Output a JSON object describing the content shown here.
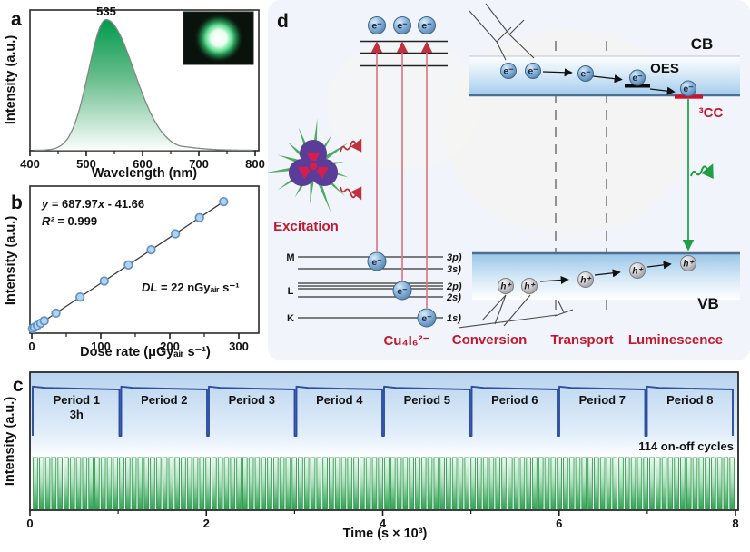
{
  "panels": {
    "a": {
      "panel_label": "a",
      "peak_annotation": "535",
      "xlabel": "Wavelength (nm)",
      "ylabel": "Intensity (a.u.)"
    },
    "b": {
      "panel_label": "b",
      "eq_y": "y",
      "eq_mid": " = 687.97",
      "eq_x": "x",
      "eq_end": " - 41.66",
      "r2_sym": "R²",
      "r2_val": " = 0.999",
      "dl_sym": "DL",
      "dl_val": " = 22 nGyₐᵢᵣ s⁻¹",
      "xlabel": "Dose rate (μGyₐᵢᵣ s⁻¹)",
      "ylabel": "Intensity (a.u.)"
    },
    "c": {
      "panel_label": "c",
      "xlabel": "Time (s × 10³)",
      "ylabel": "Intensity (a.u.)",
      "period1_sub": "3h",
      "cycles_label": "114 on-off cycles"
    },
    "d": {
      "panel_label": "d",
      "excitation": "Excitation",
      "cluster": "Cu₄I₆²⁻",
      "stage_conversion": "Conversion",
      "stage_transport": "Transport",
      "stage_luminescence": "Luminescence",
      "cb": "CB",
      "vb": "VB",
      "oes": "OES",
      "cc": "³CC",
      "shell_m": "M",
      "shell_l": "L",
      "shell_k": "K",
      "orb_3p": "3p)",
      "orb_3s": "3s)",
      "orb_2p": "2p)",
      "orb_2s": "2s)",
      "orb_1s": "1s)",
      "electron": "e⁻",
      "hole": "h⁺"
    }
  },
  "colors": {
    "accent_red": "#c2182e",
    "green": "#2f9e50",
    "trace_blue": "#2c4da1",
    "scatter_fill": "#b5d3ee",
    "scatter_edge": "#5e93c8",
    "spectrum_green": "#009a4c"
  },
  "chart_data": [
    {
      "panel": "a",
      "type": "area",
      "peak_nm": 535,
      "annotation": "535",
      "x_range": [
        400,
        800
      ],
      "x_ticks": [
        400,
        500,
        600,
        700,
        800
      ],
      "x_minor_ticks": [
        450,
        550,
        650,
        750
      ],
      "xlabel": "Wavelength (nm)",
      "ylabel": "Intensity (a.u.)",
      "profile": {
        "sigma_left_nm": 31,
        "sigma_right_nm": 50
      }
    },
    {
      "panel": "b",
      "type": "scatter",
      "x_values": [
        1,
        4,
        8,
        13,
        18,
        35,
        70,
        105,
        140,
        173,
        208,
        243,
        278
      ],
      "fit": {
        "slope": 687.97,
        "intercept": -41.66,
        "r_squared": 0.999,
        "equation": "y = 687.97x - 41.66"
      },
      "detection_limit": "DL = 22 nGyₐᵢᵣ s⁻¹",
      "x_range": [
        0,
        300
      ],
      "x_ticks": [
        0,
        100,
        200,
        300
      ],
      "x_minor_ticks": [
        50,
        150,
        250
      ],
      "xlabel": "Dose rate (μGyₐᵢᵣ s⁻¹)",
      "ylabel": "Intensity (a.u.)"
    },
    {
      "panel": "c",
      "type": "line",
      "periods": [
        "Period 1",
        "Period 2",
        "Period 3",
        "Period 4",
        "Period 5",
        "Period 6",
        "Period 7",
        "Period 8"
      ],
      "period_duration": "3h",
      "on_off_cycles": 114,
      "x_range": [
        0,
        8
      ],
      "x_ticks": [
        0,
        2,
        4,
        6,
        8
      ],
      "x_minor_ticks": [
        1,
        3,
        5,
        7
      ],
      "xlabel": "Time (s × 10³)",
      "ylabel": "Intensity (a.u.)"
    }
  ]
}
